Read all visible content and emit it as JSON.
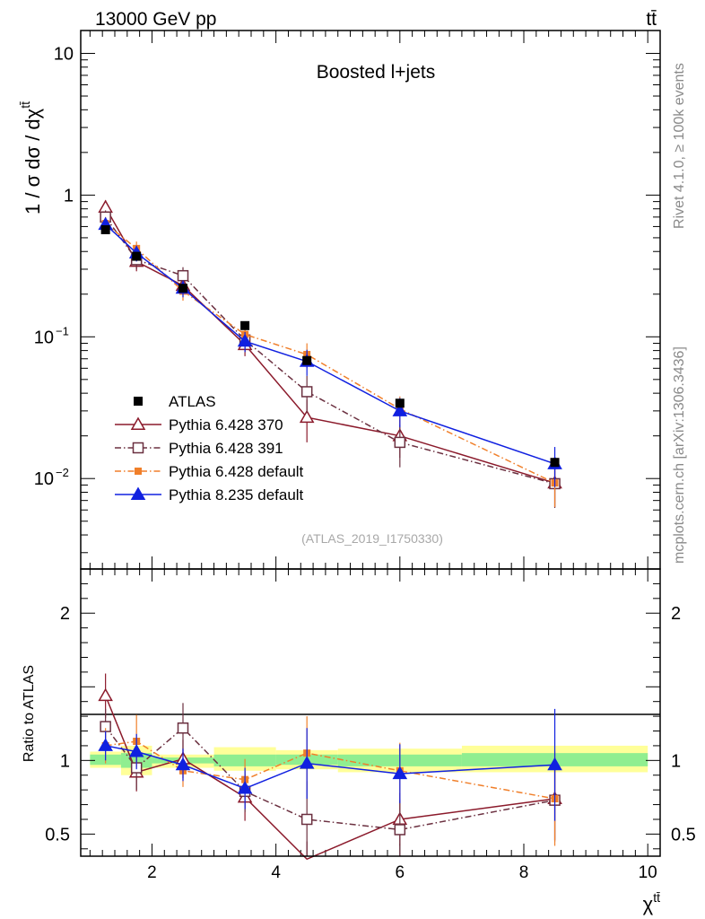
{
  "header": {
    "energy_label": "13000 GeV pp",
    "process_label": "tt̄"
  },
  "side_labels": {
    "rivet": "Rivet 4.1.0, ≥ 100k events",
    "source": "mcplots.cern.ch [arXiv:1306.3436]"
  },
  "chart_data": [
    {
      "type": "scatter",
      "title": "Boosted l+jets",
      "ylabel": "1 / σ dσ / dχ",
      "ylabel_sup": "tt̄",
      "yscale": "log",
      "ylim": [
        0.0023,
        14.5
      ],
      "xlim": [
        0.85,
        10.2
      ],
      "yticks": [
        {
          "value": 10,
          "label": "10"
        },
        {
          "value": 1,
          "label": "1"
        },
        {
          "value": 0.1,
          "label": "10",
          "exp": "−1"
        },
        {
          "value": 0.01,
          "label": "10",
          "exp": "−2"
        }
      ],
      "ref_label": "(ATLAS_2019_I1750330)",
      "x": [
        1.25,
        1.75,
        2.5,
        3.5,
        4.5,
        6.0,
        8.5
      ],
      "xerr": [
        0.25,
        0.25,
        0.5,
        0.5,
        0.5,
        1.0,
        1.5
      ],
      "data": {
        "name": "ATLAS",
        "values": [
          0.57,
          0.37,
          0.22,
          0.12,
          0.068,
          0.034,
          0.013
        ],
        "color": "#000000"
      },
      "series": [
        {
          "name": "Pythia 6.428 370",
          "values": [
            0.82,
            0.34,
            0.23,
            0.088,
            0.027,
            0.02,
            0.0093
          ],
          "errors": [
            0.1,
            0.05,
            0.03,
            0.015,
            0.009,
            0.006,
            0.003
          ],
          "color": "#8b1a2b",
          "dash": "",
          "marker": "tri-open"
        },
        {
          "name": "Pythia 6.428 391",
          "values": [
            0.7,
            0.35,
            0.27,
            0.095,
            0.041,
            0.018,
            0.0092
          ],
          "errors": [
            0.08,
            0.05,
            0.04,
            0.016,
            0.012,
            0.006,
            0.003
          ],
          "color": "#6b3040",
          "dash": "7,3,1.5,3",
          "marker": "sq-open"
        },
        {
          "name": "Pythia 6.428 default",
          "values": [
            0.63,
            0.42,
            0.21,
            0.104,
            0.075,
            0.031,
            0.0093
          ],
          "errors": [
            0.07,
            0.05,
            0.03,
            0.017,
            0.015,
            0.007,
            0.003
          ],
          "color": "#f07f2a",
          "dash": "7,3,1.5,3",
          "marker": "sq-small"
        },
        {
          "name": "Pythia 8.235 default",
          "values": [
            0.62,
            0.39,
            0.22,
            0.093,
            0.067,
            0.03,
            0.0127
          ],
          "errors": [
            0.07,
            0.05,
            0.03,
            0.015,
            0.014,
            0.007,
            0.004
          ],
          "color": "#1020e0",
          "dash": "",
          "marker": "tri-filled"
        }
      ]
    },
    {
      "type": "scatter",
      "ylabel": "Ratio to ATLAS",
      "xlabel": "χ",
      "xlabel_sup": "tt̄",
      "ylim": [
        0.35,
        2.3
      ],
      "xlim": [
        0.85,
        10.2
      ],
      "yticks": [
        {
          "value": 2,
          "label": "2"
        },
        {
          "value": 1,
          "label": "1"
        },
        {
          "value": 0.5,
          "label": "0.5"
        }
      ],
      "xticks": [
        {
          "value": 2,
          "label": "2"
        },
        {
          "value": 4,
          "label": "4"
        },
        {
          "value": 6,
          "label": "6"
        },
        {
          "value": 8,
          "label": "8"
        },
        {
          "value": 10,
          "label": "10"
        }
      ],
      "bands": [
        {
          "x0": 1.0,
          "x1": 1.5,
          "yellow": [
            0.95,
            1.06
          ],
          "green": [
            0.97,
            1.04
          ]
        },
        {
          "x0": 1.5,
          "x1": 2.0,
          "yellow": [
            0.9,
            1.1
          ],
          "green": [
            0.95,
            1.05
          ]
        },
        {
          "x0": 2.0,
          "x1": 3.0,
          "yellow": [
            0.95,
            1.04
          ],
          "green": [
            0.98,
            1.02
          ]
        },
        {
          "x0": 3.0,
          "x1": 4.0,
          "yellow": [
            0.93,
            1.09
          ],
          "green": [
            0.96,
            1.04
          ]
        },
        {
          "x0": 4.0,
          "x1": 5.0,
          "yellow": [
            0.94,
            1.07
          ],
          "green": [
            0.97,
            1.04
          ]
        },
        {
          "x0": 5.0,
          "x1": 7.0,
          "yellow": [
            0.92,
            1.08
          ],
          "green": [
            0.96,
            1.04
          ]
        },
        {
          "x0": 7.0,
          "x1": 10.0,
          "yellow": [
            0.92,
            1.1
          ],
          "green": [
            0.96,
            1.05
          ]
        }
      ],
      "series": [
        {
          "name": "Pythia 6.428 370",
          "values": [
            1.44,
            0.92,
            1.01,
            0.75,
            0.33,
            0.6,
            0.74
          ],
          "errors": [
            0.15,
            0.13,
            0.13,
            0.16,
            0.12,
            0.18,
            0.28
          ],
          "color": "#8b1a2b",
          "dash": "",
          "marker": "tri-open"
        },
        {
          "name": "Pythia 6.428 391",
          "values": [
            1.23,
            0.95,
            1.22,
            0.79,
            0.6,
            0.53,
            0.73
          ],
          "errors": [
            0.12,
            0.15,
            0.17,
            0.14,
            0.26,
            0.2,
            0.28
          ],
          "color": "#6b3040",
          "dash": "7,3,1.5,3",
          "marker": "sq-open"
        },
        {
          "name": "Pythia 6.428 default",
          "values": [
            1.1,
            1.13,
            0.93,
            0.87,
            1.05,
            0.93,
            0.74
          ],
          "errors": [
            0.12,
            0.18,
            0.11,
            0.14,
            0.25,
            0.19,
            0.32
          ],
          "color": "#f07f2a",
          "dash": "7,3,1.5,3",
          "marker": "sq-small"
        },
        {
          "name": "Pythia 8.235 default",
          "values": [
            1.1,
            1.06,
            0.97,
            0.81,
            0.98,
            0.91,
            0.97
          ],
          "errors": [
            0.1,
            0.12,
            0.11,
            0.14,
            0.24,
            0.2,
            0.38
          ],
          "color": "#1020e0",
          "dash": "",
          "marker": "tri-filled"
        }
      ]
    }
  ]
}
